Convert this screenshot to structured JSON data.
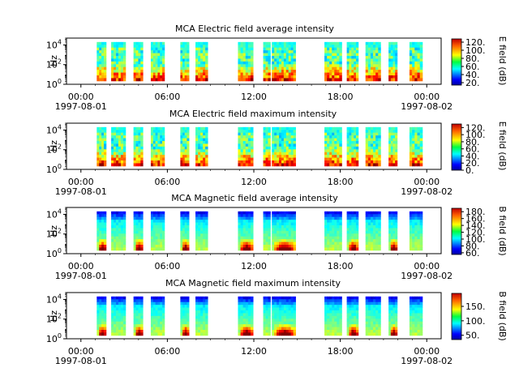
{
  "chart_data": [
    {
      "type": "heatmap",
      "title": "MCA  Electric field average intensity",
      "ylabel": "Hz",
      "y_scale": "log",
      "ylim": [
        1,
        50000
      ],
      "y_ticks": [
        {
          "value": 1,
          "base": "10",
          "exp": "0"
        },
        {
          "value": 100,
          "base": "10",
          "exp": "2"
        },
        {
          "value": 10000,
          "base": "10",
          "exp": "4"
        }
      ],
      "x_ticks": [
        "00:00",
        "06:00",
        "12:00",
        "18:00",
        "00:00"
      ],
      "x_dates": [
        "1997-08-01",
        "1997-08-02"
      ],
      "xlim_hours": [
        -1,
        25
      ],
      "colorbar_label": "E field (dB)",
      "colorbar_range": [
        14,
        128
      ],
      "colorbar_ticks": [
        "20.",
        "40.",
        "60.",
        "80.",
        "100.",
        "120."
      ],
      "colorbar_tick_values": [
        20,
        40,
        60,
        80,
        100,
        120
      ],
      "profile": "electric",
      "data_intervals_hours": [
        [
          1.1,
          1.75
        ],
        [
          2.1,
          3.1
        ],
        [
          3.65,
          4.3
        ],
        [
          4.85,
          5.8
        ],
        [
          6.9,
          7.5
        ],
        [
          7.95,
          8.8
        ],
        [
          10.9,
          11.95
        ],
        [
          12.65,
          13.15
        ],
        [
          13.25,
          14.9
        ],
        [
          16.9,
          18.1
        ],
        [
          18.45,
          19.25
        ],
        [
          19.75,
          20.8
        ],
        [
          21.35,
          21.95
        ],
        [
          22.8,
          23.7
        ]
      ]
    },
    {
      "type": "heatmap",
      "title": "MCA  Electric field maximum intensity",
      "ylabel": "Hz",
      "y_scale": "log",
      "ylim": [
        1,
        50000
      ],
      "y_ticks": [
        {
          "value": 1,
          "base": "10",
          "exp": "0"
        },
        {
          "value": 100,
          "base": "10",
          "exp": "2"
        },
        {
          "value": 10000,
          "base": "10",
          "exp": "4"
        }
      ],
      "x_ticks": [
        "00:00",
        "06:00",
        "12:00",
        "18:00",
        "00:00"
      ],
      "x_dates": [
        "1997-08-01",
        "1997-08-02"
      ],
      "xlim_hours": [
        -1,
        25
      ],
      "colorbar_label": "E field (dB)",
      "colorbar_range": [
        0,
        130
      ],
      "colorbar_ticks": [
        "0.",
        "20.",
        "40.",
        "60.",
        "80.",
        "100.",
        "120."
      ],
      "colorbar_tick_values": [
        0,
        20,
        40,
        60,
        80,
        100,
        120
      ],
      "profile": "electric",
      "data_intervals_hours": [
        [
          1.1,
          1.75
        ],
        [
          2.1,
          3.1
        ],
        [
          3.65,
          4.3
        ],
        [
          4.85,
          5.8
        ],
        [
          6.9,
          7.5
        ],
        [
          7.95,
          8.8
        ],
        [
          10.9,
          11.95
        ],
        [
          12.65,
          13.15
        ],
        [
          13.25,
          14.9
        ],
        [
          16.9,
          18.1
        ],
        [
          18.45,
          19.25
        ],
        [
          19.75,
          20.8
        ],
        [
          21.35,
          21.95
        ],
        [
          22.8,
          23.7
        ]
      ]
    },
    {
      "type": "heatmap",
      "title": "MCA  Magnetic field average intensity",
      "ylabel": "Hz",
      "y_scale": "log",
      "ylim": [
        1,
        50000
      ],
      "y_ticks": [
        {
          "value": 1,
          "base": "10",
          "exp": "0"
        },
        {
          "value": 100,
          "base": "10",
          "exp": "2"
        },
        {
          "value": 10000,
          "base": "10",
          "exp": "4"
        }
      ],
      "x_ticks": [
        "00:00",
        "06:00",
        "12:00",
        "18:00",
        "00:00"
      ],
      "x_dates": [
        "1997-08-01",
        "1997-08-02"
      ],
      "xlim_hours": [
        -1,
        25
      ],
      "colorbar_label": "B field (dB)",
      "colorbar_range": [
        55,
        190
      ],
      "colorbar_ticks": [
        "60.",
        "80.",
        "100.",
        "120.",
        "140.",
        "160.",
        "180."
      ],
      "colorbar_tick_values": [
        60,
        80,
        100,
        120,
        140,
        160,
        180
      ],
      "profile": "magnetic",
      "data_intervals_hours": [
        [
          1.1,
          1.75
        ],
        [
          2.1,
          3.1
        ],
        [
          3.65,
          4.3
        ],
        [
          4.85,
          5.8
        ],
        [
          6.9,
          7.5
        ],
        [
          7.95,
          8.8
        ],
        [
          10.9,
          11.95
        ],
        [
          12.65,
          13.15
        ],
        [
          13.25,
          14.9
        ],
        [
          16.9,
          18.1
        ],
        [
          18.45,
          19.25
        ],
        [
          19.75,
          20.8
        ],
        [
          21.35,
          21.95
        ],
        [
          22.8,
          23.7
        ]
      ]
    },
    {
      "type": "heatmap",
      "title": "MCA  Magnetic field maximum intensity",
      "ylabel": "Hz",
      "y_scale": "log",
      "ylim": [
        1,
        50000
      ],
      "y_ticks": [
        {
          "value": 1,
          "base": "10",
          "exp": "0"
        },
        {
          "value": 100,
          "base": "10",
          "exp": "2"
        },
        {
          "value": 10000,
          "base": "10",
          "exp": "4"
        }
      ],
      "x_ticks": [
        "00:00",
        "06:00",
        "12:00",
        "18:00",
        "00:00"
      ],
      "x_dates": [
        "1997-08-01",
        "1997-08-02"
      ],
      "xlim_hours": [
        -1,
        25
      ],
      "colorbar_label": "B field (dB)",
      "colorbar_range": [
        35,
        195
      ],
      "colorbar_ticks": [
        "50.",
        "100.",
        "150."
      ],
      "colorbar_tick_values": [
        50,
        100,
        150
      ],
      "profile": "magnetic",
      "data_intervals_hours": [
        [
          1.1,
          1.75
        ],
        [
          2.1,
          3.1
        ],
        [
          3.65,
          4.3
        ],
        [
          4.85,
          5.8
        ],
        [
          6.9,
          7.5
        ],
        [
          7.95,
          8.8
        ],
        [
          10.9,
          11.95
        ],
        [
          12.65,
          13.15
        ],
        [
          13.25,
          14.9
        ],
        [
          16.9,
          18.1
        ],
        [
          18.45,
          19.25
        ],
        [
          19.75,
          20.8
        ],
        [
          21.35,
          21.95
        ],
        [
          22.8,
          23.7
        ]
      ]
    }
  ]
}
